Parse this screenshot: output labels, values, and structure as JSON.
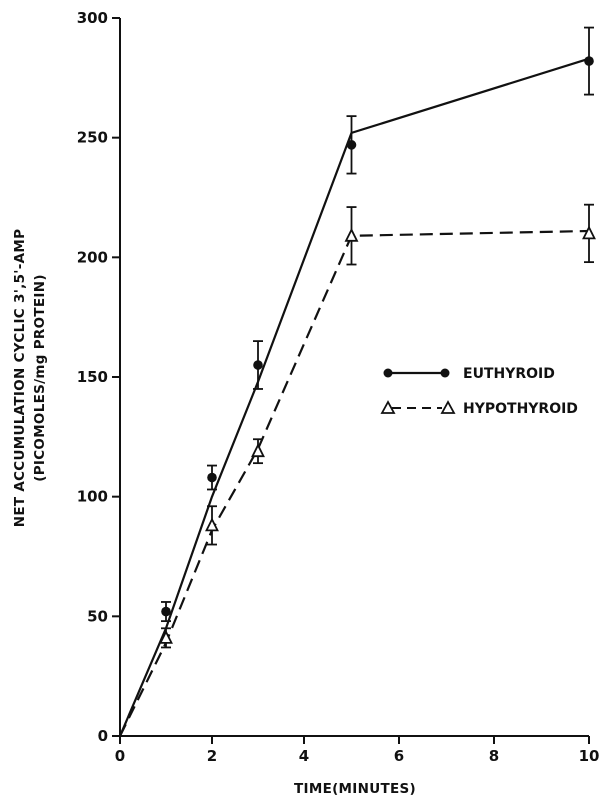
{
  "chart_data": {
    "type": "line",
    "xlabel": "TIME(MINUTES)",
    "ylabel_line1": "NET ACCUMULATION CYCLIC 3',5'-AMP",
    "ylabel_line2": "(PICOMOLES/mg PROTEIN)",
    "xlim": [
      0,
      10
    ],
    "ylim": [
      0,
      300
    ],
    "x_scale_note": "axis break: ticks 0,2,4 linear, then 6,8,10 compressed",
    "x_ticks": [
      "0",
      "2",
      "4",
      "6",
      "8",
      "10"
    ],
    "y_ticks": [
      "0",
      "50",
      "100",
      "150",
      "200",
      "250",
      "300"
    ],
    "grid": false,
    "legend_position": "right-middle",
    "series": [
      {
        "name": "EUTHYROID",
        "marker": "filled-circle",
        "line_style": "solid",
        "x": [
          0,
          1,
          2,
          3,
          5,
          10
        ],
        "y": [
          0,
          52,
          108,
          155,
          247,
          282
        ],
        "error": [
          null,
          4,
          5,
          10,
          12,
          14
        ],
        "line_path_x": [
          0,
          1,
          2,
          3,
          5,
          10
        ],
        "line_path_y": [
          0,
          45,
          100,
          148,
          252,
          283
        ]
      },
      {
        "name": "HYPOTHYROID",
        "marker": "open-triangle",
        "line_style": "dashed",
        "x": [
          0,
          1,
          2,
          3,
          5,
          10
        ],
        "y": [
          0,
          41,
          88,
          119,
          209,
          210
        ],
        "error": [
          null,
          4,
          8,
          5,
          12,
          12
        ],
        "line_path_x": [
          0,
          1,
          2,
          3,
          5,
          10
        ],
        "line_path_y": [
          0,
          39,
          86,
          120,
          209,
          211
        ]
      }
    ]
  }
}
